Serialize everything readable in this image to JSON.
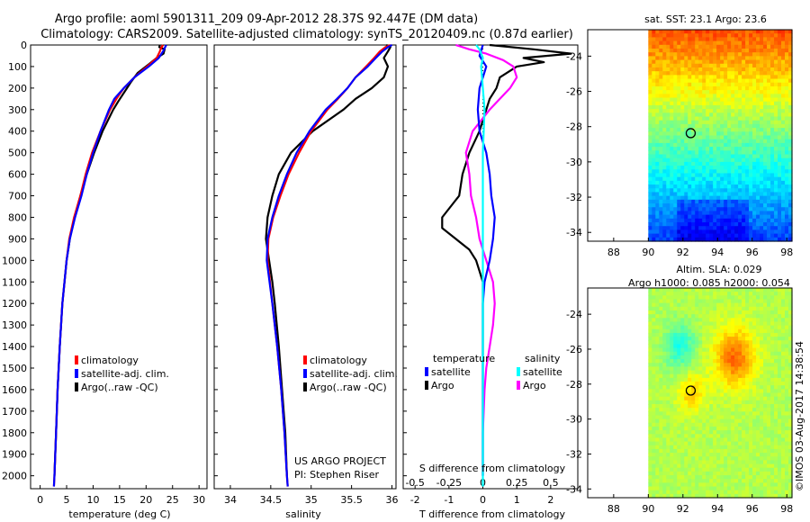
{
  "header": {
    "line1": "Argo profile: aoml 5901311_209 09-Apr-2012 28.37S 92.447E (DM data)",
    "line2": "Climatology: CARS2009. Satellite-adjusted climatology: synTS_20120409.nc (0.87d earlier)"
  },
  "credit": {
    "project": "US ARGO PROJECT",
    "pi": "PI: Stephen Riser",
    "stamp": "©IMOS 03-Aug-2017 14:38:54"
  },
  "colors": {
    "climatology": "#ff0000",
    "satellite": "#0000ff",
    "argo": "#000000",
    "s_satellite": "#00ffff",
    "s_argo": "#ff00ff"
  },
  "chart_data": [
    {
      "type": "line",
      "id": "temperature",
      "xlabel": "temperature (deg C)",
      "xlim": [
        -1.8,
        31.5
      ],
      "ylim": [
        2060,
        0
      ],
      "x_ticks": [
        0,
        5,
        10,
        15,
        20,
        25,
        30
      ],
      "y_ticks": [
        0,
        100,
        200,
        300,
        400,
        500,
        600,
        700,
        800,
        900,
        1000,
        1100,
        1200,
        1300,
        1400,
        1500,
        1600,
        1700,
        1800,
        1900,
        2000
      ],
      "legend": [
        "climatology",
        "satellite-adj. clim.",
        "Argo(..raw -QC)"
      ],
      "series": [
        {
          "name": "climatology",
          "color": "#ff0000",
          "y": [
            0,
            15,
            30,
            60,
            100,
            150,
            200,
            250,
            300,
            400,
            500,
            600,
            700,
            800,
            900,
            1000,
            1200,
            1400,
            1600,
            1800,
            2000,
            2050
          ],
          "x": [
            23.2,
            22.8,
            22.6,
            22.0,
            20.2,
            17.8,
            15.8,
            14.4,
            13.2,
            11.4,
            9.8,
            8.6,
            7.6,
            6.4,
            5.5,
            5.0,
            4.2,
            3.7,
            3.3,
            3.0,
            2.7,
            2.6
          ]
        },
        {
          "name": "satellite-adj. clim.",
          "color": "#0000ff",
          "y": [
            0,
            15,
            30,
            60,
            100,
            150,
            200,
            250,
            300,
            400,
            500,
            600,
            700,
            800,
            900,
            1000,
            1200,
            1400,
            1600,
            1800,
            2000,
            2050
          ],
          "x": [
            23.8,
            23.5,
            23.2,
            22.4,
            20.5,
            17.8,
            15.8,
            14.0,
            13.0,
            11.4,
            10.0,
            8.8,
            7.8,
            6.6,
            5.6,
            5.0,
            4.2,
            3.7,
            3.3,
            3.0,
            2.7,
            2.6
          ]
        },
        {
          "name": "Argo(..raw -QC)",
          "color": "#000000",
          "y": [
            0,
            10,
            20,
            40,
            60,
            90,
            130,
            170,
            200,
            260,
            300,
            400,
            500,
            600,
            700,
            800,
            900,
            1000,
            1100,
            1200,
            1400,
            1600,
            1800,
            2000
          ],
          "x": [
            22.6,
            22.5,
            23.5,
            23.3,
            22.0,
            20.5,
            18.4,
            17.2,
            16.4,
            14.8,
            13.8,
            11.8,
            10.2,
            8.8,
            7.6,
            6.5,
            5.6,
            5.0,
            4.6,
            4.2,
            3.7,
            3.3,
            3.0,
            2.7
          ]
        }
      ]
    },
    {
      "type": "line",
      "id": "salinity",
      "xlabel": "salinity",
      "xlim": [
        33.8,
        36.05
      ],
      "ylim": [
        2060,
        0
      ],
      "x_ticks": [
        34,
        34.5,
        35,
        35.5,
        36
      ],
      "legend": [
        "climatology",
        "satellite-adj. clim.",
        "Argo(..raw -QC)"
      ],
      "series": [
        {
          "name": "climatology",
          "color": "#ff0000",
          "y": [
            0,
            10,
            30,
            60,
            100,
            150,
            200,
            250,
            300,
            400,
            500,
            600,
            700,
            800,
            900,
            1000,
            1200,
            1400,
            1600,
            1800,
            2000,
            2050
          ],
          "x": [
            35.98,
            35.92,
            35.85,
            35.78,
            35.68,
            35.55,
            35.45,
            35.33,
            35.2,
            35.0,
            34.85,
            34.72,
            34.62,
            34.53,
            34.47,
            34.46,
            34.52,
            34.58,
            34.63,
            34.67,
            34.7,
            34.71
          ]
        },
        {
          "name": "satellite-adj. clim.",
          "color": "#0000ff",
          "y": [
            0,
            10,
            30,
            60,
            100,
            150,
            200,
            250,
            300,
            400,
            500,
            600,
            700,
            800,
            900,
            1000,
            1200,
            1400,
            1600,
            1800,
            2000,
            2050
          ],
          "x": [
            36.0,
            35.95,
            35.88,
            35.8,
            35.7,
            35.55,
            35.45,
            35.32,
            35.18,
            34.98,
            34.82,
            34.7,
            34.6,
            34.52,
            34.46,
            34.45,
            34.52,
            34.58,
            34.63,
            34.67,
            34.7,
            34.71
          ]
        },
        {
          "name": "Argo(..raw -QC)",
          "color": "#000000",
          "y": [
            0,
            10,
            30,
            60,
            100,
            150,
            200,
            250,
            300,
            400,
            500,
            600,
            700,
            800,
            900,
            1000,
            1100,
            1200,
            1400,
            1600,
            1800,
            2000
          ],
          "x": [
            35.93,
            35.98,
            35.95,
            35.9,
            35.95,
            35.9,
            35.75,
            35.55,
            35.4,
            35.02,
            34.75,
            34.6,
            34.52,
            34.46,
            34.44,
            34.48,
            34.52,
            34.55,
            34.6,
            34.64,
            34.68,
            34.7
          ]
        }
      ]
    },
    {
      "type": "line",
      "id": "difference",
      "xlabel": "T difference from climatology",
      "xlabel_top": "S difference from climatology",
      "xlim": [
        -2.35,
        2.8
      ],
      "ylim": [
        2060,
        0
      ],
      "x_ticks": [
        -2,
        -1,
        0,
        1,
        2
      ],
      "s_ticks": [
        {
          "v": -0.5,
          "label": "-0.5"
        },
        {
          "v": -0.25,
          "label": "-0.25"
        },
        {
          "v": 0,
          "label": "0"
        },
        {
          "v": 0.25,
          "label": "0.25"
        },
        {
          "v": 0.5,
          "label": "0.5"
        }
      ],
      "s_scale": 4,
      "legend_titles": [
        "temperature",
        "salinity"
      ],
      "legend": [
        "satellite",
        "Argo",
        "satellite",
        "Argo"
      ],
      "series": [
        {
          "name": "temperature satellite",
          "color": "#0000ff",
          "y": [
            0,
            50,
            100,
            200,
            300,
            400,
            500,
            600,
            700,
            800,
            900,
            1000,
            1100,
            1200,
            1600,
            2000
          ],
          "x": [
            0.0,
            -0.1,
            0.1,
            -0.1,
            -0.15,
            -0.1,
            0.1,
            0.2,
            0.25,
            0.35,
            0.3,
            0.2,
            0.05,
            0.0,
            0.0,
            0.0
          ]
        },
        {
          "name": "temperature Argo",
          "color": "#000000",
          "y": [
            0,
            20,
            40,
            60,
            80,
            100,
            150,
            200,
            250,
            300,
            400,
            500,
            600,
            700,
            800,
            850,
            900,
            950,
            1000,
            1050,
            1100,
            1200,
            1600,
            2000
          ],
          "x": [
            0.2,
            1.5,
            2.6,
            1.2,
            1.8,
            1.0,
            0.5,
            0.4,
            0.2,
            0.1,
            -0.1,
            -0.4,
            -0.6,
            -0.7,
            -1.2,
            -1.2,
            -0.8,
            -0.4,
            -0.2,
            -0.1,
            0.0,
            0.0,
            0.0,
            0.0
          ]
        },
        {
          "name": "salinity satellite",
          "color": "#00ffff",
          "y": [
            0,
            20,
            60,
            100,
            200,
            300,
            500,
            800,
            1000,
            1200,
            1500,
            2000,
            2050
          ],
          "x": [
            -0.2,
            -0.1,
            0.0,
            -0.05,
            0.0,
            0.05,
            0.0,
            0.0,
            0.0,
            0.0,
            0.0,
            0.0,
            0.0
          ]
        },
        {
          "name": "salinity Argo",
          "color": "#ff00ff",
          "y": [
            0,
            20,
            40,
            70,
            100,
            150,
            200,
            300,
            400,
            500,
            600,
            700,
            800,
            900,
            1000,
            1100,
            1200,
            1300,
            1400,
            1500,
            1600,
            1800,
            2000
          ],
          "x": [
            -0.8,
            -0.4,
            0.1,
            0.6,
            0.9,
            1.0,
            0.8,
            0.2,
            -0.3,
            -0.5,
            -0.4,
            -0.35,
            -0.2,
            -0.1,
            0.1,
            0.3,
            0.35,
            0.3,
            0.2,
            0.1,
            0.05,
            0.0,
            0.0
          ]
        }
      ]
    },
    {
      "type": "heatmap",
      "id": "sst_map",
      "title": "sat. SST: 23.1  Argo: 23.6",
      "xlim": [
        86.5,
        98.3
      ],
      "ylim": [
        -34.5,
        -22.5
      ],
      "x_ticks": [
        88,
        90,
        92,
        94,
        96,
        98
      ],
      "y_ticks": [
        -24,
        -26,
        -28,
        -30,
        -32,
        -34
      ],
      "data_xlim": [
        90,
        98.3
      ],
      "marker": {
        "x": 92.45,
        "y": -28.37
      }
    },
    {
      "type": "heatmap",
      "id": "sla_map",
      "title": "Altim. SLA: 0.029",
      "subtitle": "Argo h1000: 0.085 h2000: 0.054",
      "xlim": [
        86.5,
        98.3
      ],
      "ylim": [
        -34.5,
        -22.5
      ],
      "x_ticks": [
        88,
        90,
        92,
        94,
        96,
        98
      ],
      "y_ticks": [
        -24,
        -26,
        -28,
        -30,
        -32,
        -34
      ],
      "data_xlim": [
        90,
        98.3
      ],
      "marker": {
        "x": 92.45,
        "y": -28.37
      }
    }
  ]
}
